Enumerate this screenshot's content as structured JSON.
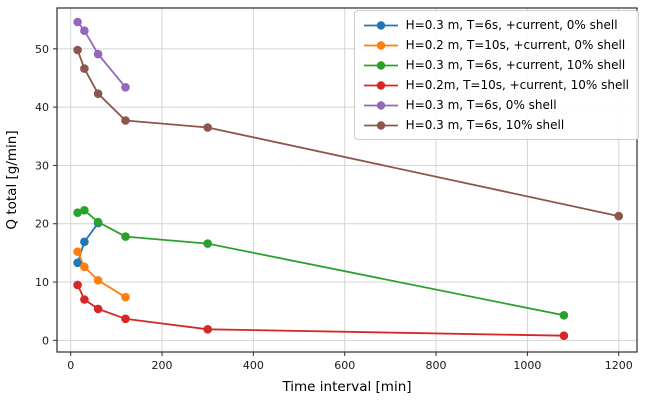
{
  "chart_data": {
    "type": "line",
    "title": "",
    "xlabel": "Time interval [min]",
    "ylabel": "Q total [g/min]",
    "xlim": [
      -30,
      1240
    ],
    "ylim": [
      -2,
      57
    ],
    "xticks": [
      0,
      200,
      400,
      600,
      800,
      1000,
      1200
    ],
    "yticks": [
      0,
      10,
      20,
      30,
      40,
      50
    ],
    "grid": true,
    "legend_position": "upper right",
    "marker": "circle",
    "series": [
      {
        "name": "H=0.3 m, T=6s, +current, 0% shell",
        "color": "#1f77b4",
        "x": [
          15,
          30,
          60
        ],
        "y": [
          13.3,
          16.9,
          20.1
        ]
      },
      {
        "name": "H=0.2 m, T=10s, +current, 0% shell",
        "color": "#ff7f0e",
        "x": [
          15,
          30,
          60,
          120
        ],
        "y": [
          15.2,
          12.6,
          10.3,
          7.4
        ]
      },
      {
        "name": "H=0.3 m, T=6s, +current, 10% shell",
        "color": "#2ca02c",
        "x": [
          15,
          30,
          60,
          120,
          300,
          1080
        ],
        "y": [
          21.9,
          22.3,
          20.3,
          17.8,
          16.6,
          4.3
        ]
      },
      {
        "name": "H=0.2m, T=10s, +current, 10% shell",
        "color": "#d62728",
        "x": [
          15,
          30,
          60,
          120,
          300,
          1080
        ],
        "y": [
          9.5,
          7.0,
          5.4,
          3.7,
          1.9,
          0.8
        ]
      },
      {
        "name": "H=0.3 m, T=6s, 0% shell",
        "color": "#9467bd",
        "x": [
          15,
          30,
          60,
          120
        ],
        "y": [
          54.6,
          53.1,
          49.1,
          43.4
        ]
      },
      {
        "name": "H=0.3 m, T=6s, 10% shell",
        "color": "#8c564b",
        "x": [
          15,
          30,
          60,
          120,
          300,
          1200
        ],
        "y": [
          49.8,
          46.6,
          42.3,
          37.7,
          36.5,
          21.3
        ]
      }
    ]
  }
}
